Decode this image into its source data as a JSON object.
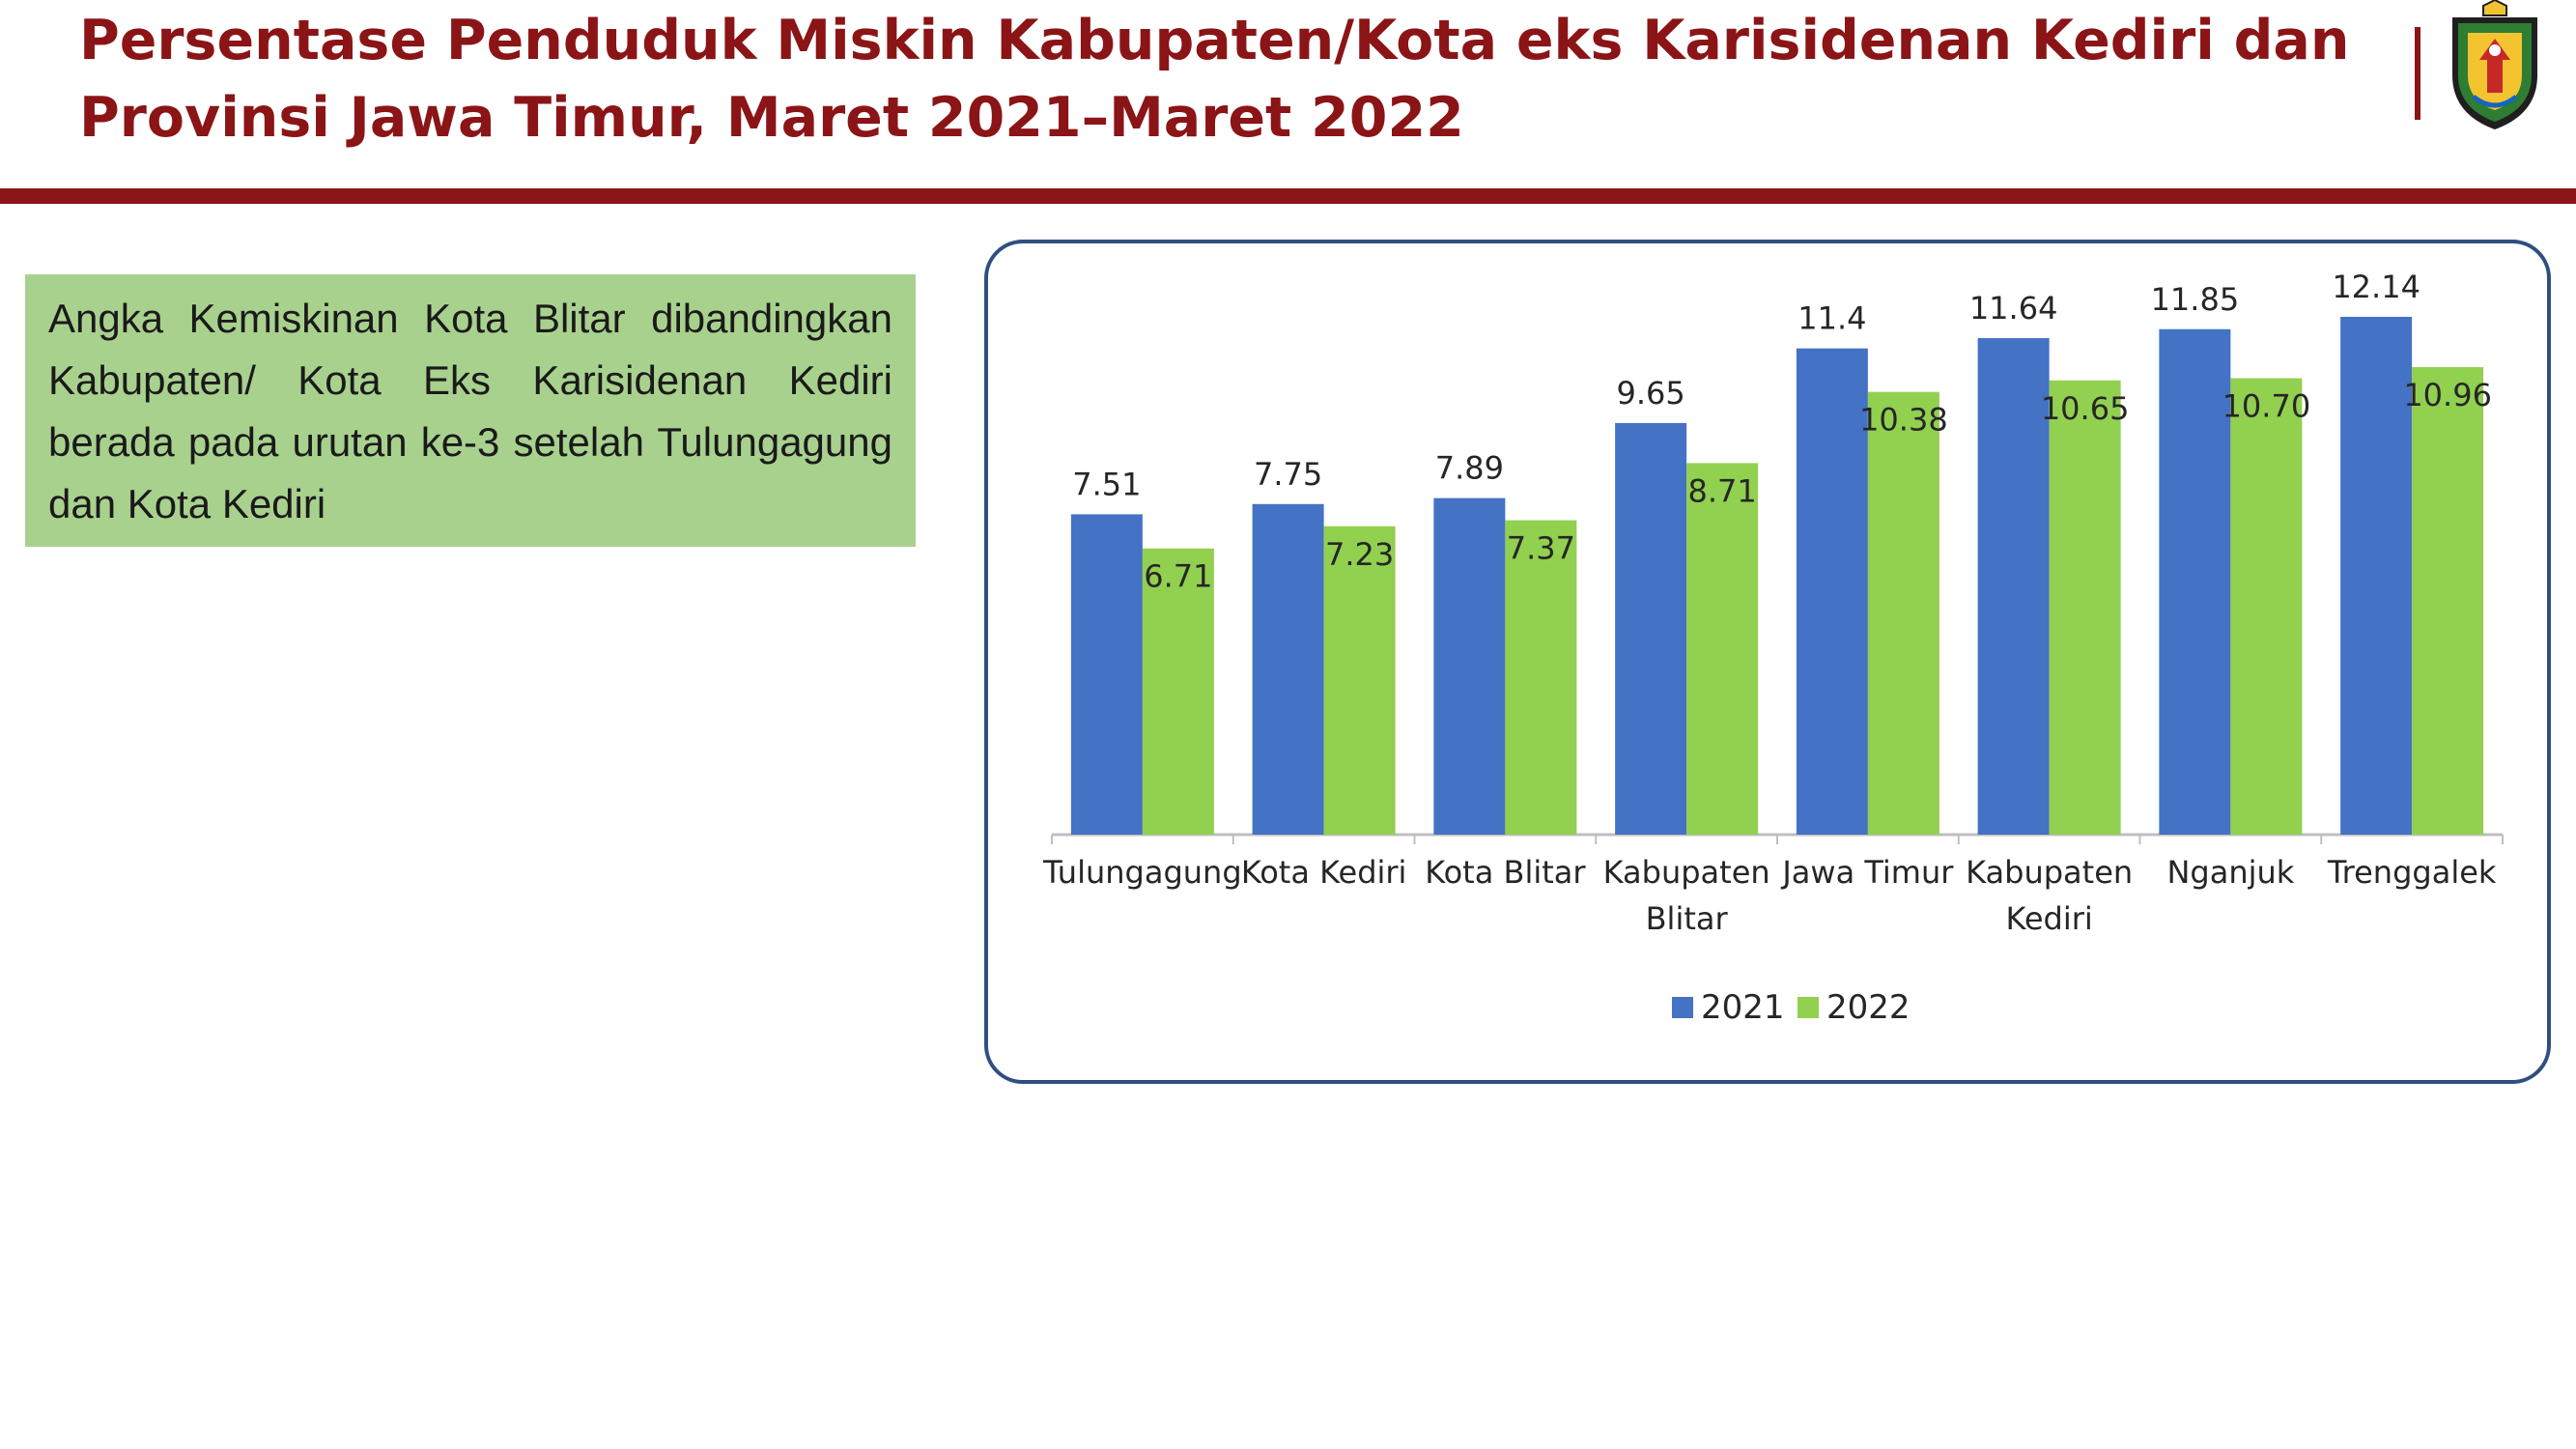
{
  "slide": {
    "title_line1": "Persentase Penduduk Miskin Kabupaten/Kota eks Karisidenan Kediri dan",
    "title_line2": "Provinsi Jawa Timur, Maret 2021–Maret 2022",
    "callout_text": "Angka Kemiskinan Kota Blitar dibandingkan Kabupaten/ Kota Eks Karisidenan Kediri berada pada urutan ke-3 setelah Tulungagung dan Kota Kediri"
  },
  "colors": {
    "title": "#8b1416",
    "series_2021": "#4472c4",
    "series_2022": "#92d050",
    "callout_bg": "#a9d18e",
    "frame": "#2f4f80"
  },
  "chart_data": {
    "type": "bar",
    "categories": [
      [
        "Tulungagung"
      ],
      [
        "Kota Kediri"
      ],
      [
        "Kota Blitar"
      ],
      [
        "Kabupaten",
        "Blitar"
      ],
      [
        "Jawa Timur"
      ],
      [
        "Kabupaten",
        "Kediri"
      ],
      [
        "Nganjuk"
      ],
      [
        "Trenggalek"
      ]
    ],
    "series": [
      {
        "name": "2021",
        "values": [
          7.51,
          7.75,
          7.89,
          9.65,
          11.4,
          11.64,
          11.85,
          12.14
        ],
        "labels": [
          "7.51",
          "7.75",
          "7.89",
          "9.65",
          "11.4",
          "11.64",
          "11.85",
          "12.14"
        ]
      },
      {
        "name": "2022",
        "values": [
          6.71,
          7.23,
          7.37,
          8.71,
          10.38,
          10.65,
          10.7,
          10.96
        ],
        "labels": [
          "6.71",
          "7.23",
          "7.37",
          "8.71",
          "10.38",
          "10.65",
          "10.70",
          "10.96"
        ]
      }
    ],
    "title": "",
    "xlabel": "",
    "ylabel": "",
    "ylim": [
      0,
      13
    ],
    "grid": false,
    "legend": "bottom-center"
  }
}
